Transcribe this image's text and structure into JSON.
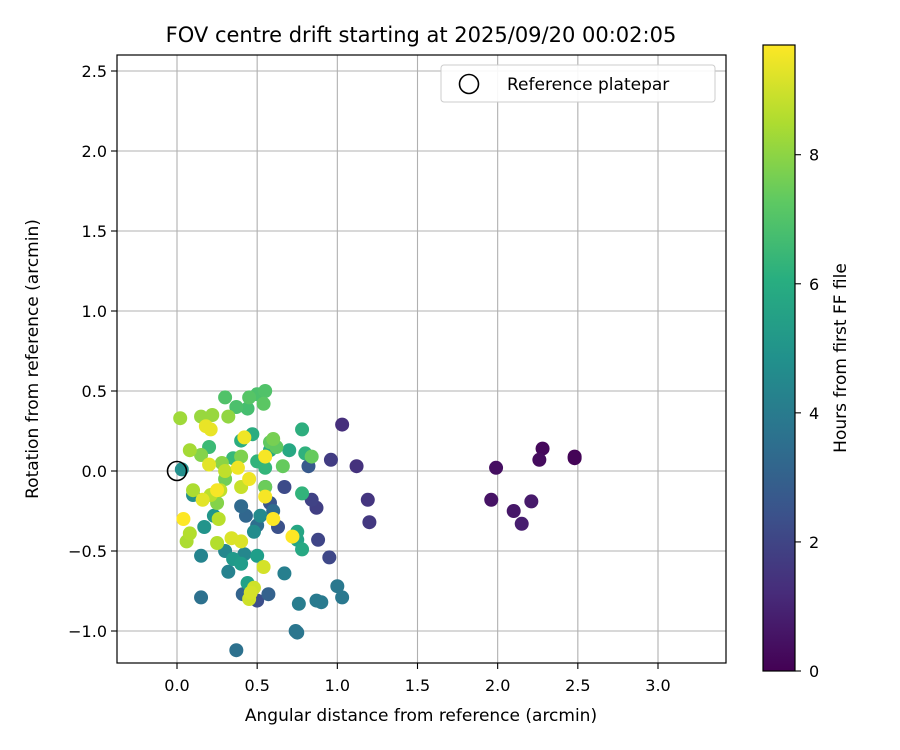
{
  "chart_data": {
    "type": "scatter",
    "title": "FOV centre drift starting at 2025/09/20 00:02:05",
    "xlabel": "Angular distance from reference (arcmin)",
    "ylabel": "Rotation from reference (arcmin)",
    "xlim": [
      -0.38,
      3.4
    ],
    "ylim": [
      -1.2,
      2.6
    ],
    "xticks": [
      "0.0",
      "0.5",
      "1.0",
      "1.5",
      "2.0",
      "2.5",
      "3.0"
    ],
    "yticks": [
      "−1.0",
      "−0.5",
      "0.0",
      "0.5",
      "1.0",
      "1.5",
      "2.0",
      "2.5"
    ],
    "grid": true,
    "legend": {
      "placement": "top-right",
      "label": "Reference platepar"
    },
    "colorbar": {
      "label": "Hours from first FF file",
      "colormap": "viridis",
      "range": [
        0,
        9.7
      ],
      "ticks": [
        "0",
        "2",
        "4",
        "6",
        "8"
      ]
    },
    "reference_point": {
      "x": 0.0,
      "y": 0.0
    },
    "points": [
      {
        "x": 2.48,
        "y": 0.09,
        "c": 0.1
      },
      {
        "x": 2.48,
        "y": 0.08,
        "c": 0.1
      },
      {
        "x": 2.28,
        "y": 0.14,
        "c": 0.2
      },
      {
        "x": 2.26,
        "y": 0.07,
        "c": 0.3
      },
      {
        "x": 1.99,
        "y": 0.02,
        "c": 0.4
      },
      {
        "x": 1.96,
        "y": -0.18,
        "c": 0.5
      },
      {
        "x": 2.1,
        "y": -0.25,
        "c": 0.6
      },
      {
        "x": 2.21,
        "y": -0.19,
        "c": 0.7
      },
      {
        "x": 2.15,
        "y": -0.33,
        "c": 0.8
      },
      {
        "x": 1.03,
        "y": 0.29,
        "c": 1.3
      },
      {
        "x": 1.12,
        "y": 0.03,
        "c": 1.4
      },
      {
        "x": 1.19,
        "y": -0.18,
        "c": 1.5
      },
      {
        "x": 1.2,
        "y": -0.32,
        "c": 1.6
      },
      {
        "x": 0.96,
        "y": 0.07,
        "c": 1.7
      },
      {
        "x": 0.87,
        "y": -0.23,
        "c": 1.8
      },
      {
        "x": 0.84,
        "y": -0.18,
        "c": 1.9
      },
      {
        "x": 0.88,
        "y": -0.43,
        "c": 2.0
      },
      {
        "x": 0.95,
        "y": -0.54,
        "c": 2.1
      },
      {
        "x": 0.67,
        "y": -0.1,
        "c": 2.2
      },
      {
        "x": 0.5,
        "y": -0.81,
        "c": 2.3
      },
      {
        "x": 0.63,
        "y": -0.35,
        "c": 2.4
      },
      {
        "x": 0.58,
        "y": -0.2,
        "c": 2.6
      },
      {
        "x": 0.82,
        "y": 0.03,
        "c": 2.7
      },
      {
        "x": 0.57,
        "y": -0.77,
        "c": 3.0
      },
      {
        "x": 0.41,
        "y": -0.77,
        "c": 3.1
      },
      {
        "x": 0.43,
        "y": -0.28,
        "c": 3.2
      },
      {
        "x": 0.4,
        "y": -0.22,
        "c": 3.3
      },
      {
        "x": 0.55,
        "y": -0.1,
        "c": 3.4
      },
      {
        "x": 0.6,
        "y": -0.25,
        "c": 3.4
      },
      {
        "x": 0.5,
        "y": -0.34,
        "c": 3.5
      },
      {
        "x": 0.15,
        "y": -0.79,
        "c": 3.6
      },
      {
        "x": 0.37,
        "y": -1.12,
        "c": 3.6
      },
      {
        "x": 0.74,
        "y": -1.0,
        "c": 3.8
      },
      {
        "x": 0.75,
        "y": -1.01,
        "c": 3.8
      },
      {
        "x": 1.0,
        "y": -0.72,
        "c": 3.9
      },
      {
        "x": 1.03,
        "y": -0.79,
        "c": 3.9
      },
      {
        "x": 0.87,
        "y": -0.81,
        "c": 4.0
      },
      {
        "x": 0.9,
        "y": -0.82,
        "c": 4.0
      },
      {
        "x": 0.76,
        "y": -0.83,
        "c": 4.1
      },
      {
        "x": 0.67,
        "y": -0.64,
        "c": 4.2
      },
      {
        "x": 0.32,
        "y": -0.63,
        "c": 4.3
      },
      {
        "x": 0.15,
        "y": -0.53,
        "c": 4.4
      },
      {
        "x": 0.3,
        "y": -0.5,
        "c": 4.5
      },
      {
        "x": 0.42,
        "y": -0.52,
        "c": 4.5
      },
      {
        "x": 0.52,
        "y": -0.28,
        "c": 4.6
      },
      {
        "x": 0.48,
        "y": -0.38,
        "c": 4.7
      },
      {
        "x": 0.03,
        "y": 0.01,
        "c": 4.8
      },
      {
        "x": 0.1,
        "y": -0.15,
        "c": 4.8
      },
      {
        "x": 0.17,
        "y": -0.35,
        "c": 5.0
      },
      {
        "x": 0.23,
        "y": -0.28,
        "c": 5.1
      },
      {
        "x": 0.35,
        "y": -0.55,
        "c": 5.2
      },
      {
        "x": 0.4,
        "y": -0.58,
        "c": 5.3
      },
      {
        "x": 0.5,
        "y": -0.53,
        "c": 5.4
      },
      {
        "x": 0.44,
        "y": -0.7,
        "c": 5.5
      },
      {
        "x": 0.75,
        "y": -0.43,
        "c": 5.6
      },
      {
        "x": 0.75,
        "y": -0.38,
        "c": 5.7
      },
      {
        "x": 0.78,
        "y": -0.49,
        "c": 5.8
      },
      {
        "x": 0.7,
        "y": 0.13,
        "c": 5.8
      },
      {
        "x": 0.58,
        "y": 0.13,
        "c": 5.9
      },
      {
        "x": 0.4,
        "y": 0.19,
        "c": 6.0
      },
      {
        "x": 0.47,
        "y": 0.23,
        "c": 6.0
      },
      {
        "x": 0.78,
        "y": 0.26,
        "c": 6.1
      },
      {
        "x": 0.8,
        "y": 0.11,
        "c": 6.2
      },
      {
        "x": 0.78,
        "y": -0.14,
        "c": 6.3
      },
      {
        "x": 0.5,
        "y": 0.06,
        "c": 6.3
      },
      {
        "x": 0.55,
        "y": 0.02,
        "c": 6.4
      },
      {
        "x": 0.35,
        "y": 0.08,
        "c": 6.5
      },
      {
        "x": 0.2,
        "y": 0.15,
        "c": 6.6
      },
      {
        "x": 0.44,
        "y": 0.39,
        "c": 6.8
      },
      {
        "x": 0.37,
        "y": 0.4,
        "c": 6.9
      },
      {
        "x": 0.5,
        "y": 0.48,
        "c": 6.9
      },
      {
        "x": 0.55,
        "y": 0.5,
        "c": 7.0
      },
      {
        "x": 0.3,
        "y": 0.46,
        "c": 7.0
      },
      {
        "x": 0.45,
        "y": 0.46,
        "c": 7.1
      },
      {
        "x": 0.54,
        "y": 0.42,
        "c": 7.2
      },
      {
        "x": 0.58,
        "y": 0.18,
        "c": 7.3
      },
      {
        "x": 0.62,
        "y": 0.15,
        "c": 7.3
      },
      {
        "x": 0.66,
        "y": 0.03,
        "c": 7.4
      },
      {
        "x": 0.84,
        "y": 0.09,
        "c": 7.4
      },
      {
        "x": 0.55,
        "y": -0.1,
        "c": 7.5
      },
      {
        "x": 0.3,
        "y": -0.05,
        "c": 7.6
      },
      {
        "x": 0.6,
        "y": 0.2,
        "c": 7.7
      },
      {
        "x": 0.4,
        "y": 0.09,
        "c": 7.8
      },
      {
        "x": 0.25,
        "y": -0.2,
        "c": 7.9
      },
      {
        "x": 0.15,
        "y": 0.1,
        "c": 7.9
      },
      {
        "x": 0.28,
        "y": 0.05,
        "c": 8.0
      },
      {
        "x": 0.32,
        "y": 0.34,
        "c": 8.1
      },
      {
        "x": 0.22,
        "y": 0.35,
        "c": 8.2
      },
      {
        "x": 0.15,
        "y": 0.34,
        "c": 8.2
      },
      {
        "x": 0.02,
        "y": 0.33,
        "c": 8.3
      },
      {
        "x": 0.08,
        "y": 0.13,
        "c": 8.4
      },
      {
        "x": 0.1,
        "y": -0.12,
        "c": 8.5
      },
      {
        "x": 0.06,
        "y": -0.44,
        "c": 8.5
      },
      {
        "x": 0.08,
        "y": -0.39,
        "c": 8.6
      },
      {
        "x": 0.25,
        "y": -0.45,
        "c": 8.6
      },
      {
        "x": 0.21,
        "y": -0.15,
        "c": 8.7
      },
      {
        "x": 0.26,
        "y": -0.3,
        "c": 8.7
      },
      {
        "x": 0.3,
        "y": 0.0,
        "c": 8.8
      },
      {
        "x": 0.27,
        "y": -0.12,
        "c": 8.8
      },
      {
        "x": 0.4,
        "y": -0.1,
        "c": 8.9
      },
      {
        "x": 0.45,
        "y": -0.8,
        "c": 9.0
      },
      {
        "x": 0.48,
        "y": -0.73,
        "c": 9.0
      },
      {
        "x": 0.46,
        "y": -0.76,
        "c": 9.1
      },
      {
        "x": 0.54,
        "y": -0.6,
        "c": 9.1
      },
      {
        "x": 0.34,
        "y": -0.42,
        "c": 9.2
      },
      {
        "x": 0.4,
        "y": -0.44,
        "c": 9.2
      },
      {
        "x": 0.16,
        "y": -0.18,
        "c": 9.3
      },
      {
        "x": 0.2,
        "y": 0.04,
        "c": 9.3
      },
      {
        "x": 0.18,
        "y": 0.28,
        "c": 9.4
      },
      {
        "x": 0.21,
        "y": 0.26,
        "c": 9.4
      },
      {
        "x": 0.42,
        "y": 0.21,
        "c": 9.5
      },
      {
        "x": 0.45,
        "y": -0.05,
        "c": 9.5
      },
      {
        "x": 0.55,
        "y": 0.09,
        "c": 9.6
      },
      {
        "x": 0.55,
        "y": -0.16,
        "c": 9.6
      },
      {
        "x": 0.6,
        "y": -0.3,
        "c": 9.7
      },
      {
        "x": 0.72,
        "y": -0.41,
        "c": 9.7
      },
      {
        "x": 0.04,
        "y": -0.3,
        "c": 9.7
      },
      {
        "x": 0.25,
        "y": -0.12,
        "c": 9.6
      },
      {
        "x": 0.38,
        "y": 0.02,
        "c": 9.5
      }
    ]
  }
}
